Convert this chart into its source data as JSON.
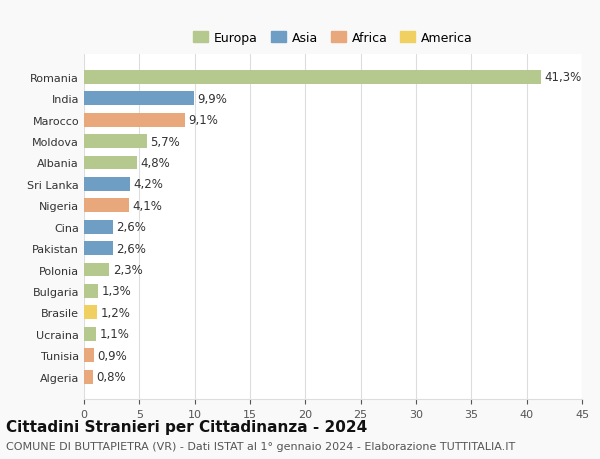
{
  "countries": [
    "Romania",
    "India",
    "Marocco",
    "Moldova",
    "Albania",
    "Sri Lanka",
    "Nigeria",
    "Cina",
    "Pakistan",
    "Polonia",
    "Bulgaria",
    "Brasile",
    "Ucraina",
    "Tunisia",
    "Algeria"
  ],
  "values": [
    41.3,
    9.9,
    9.1,
    5.7,
    4.8,
    4.2,
    4.1,
    2.6,
    2.6,
    2.3,
    1.3,
    1.2,
    1.1,
    0.9,
    0.8
  ],
  "labels": [
    "41,3%",
    "9,9%",
    "9,1%",
    "5,7%",
    "4,8%",
    "4,2%",
    "4,1%",
    "2,6%",
    "2,6%",
    "2,3%",
    "1,3%",
    "1,2%",
    "1,1%",
    "0,9%",
    "0,8%"
  ],
  "continents": [
    "Europa",
    "Asia",
    "Africa",
    "Europa",
    "Europa",
    "Asia",
    "Africa",
    "Asia",
    "Asia",
    "Europa",
    "Europa",
    "America",
    "Europa",
    "Africa",
    "Africa"
  ],
  "continent_colors": {
    "Europa": "#b5c98e",
    "Asia": "#6e9ec4",
    "Africa": "#e8a87c",
    "America": "#f0d060"
  },
  "legend_order": [
    "Europa",
    "Asia",
    "Africa",
    "America"
  ],
  "xlim": [
    0,
    45
  ],
  "xticks": [
    0,
    5,
    10,
    15,
    20,
    25,
    30,
    35,
    40,
    45
  ],
  "title": "Cittadini Stranieri per Cittadinanza - 2024",
  "subtitle": "COMUNE DI BUTTAPIETRA (VR) - Dati ISTAT al 1° gennaio 2024 - Elaborazione TUTTITALIA.IT",
  "background_color": "#f9f9f9",
  "bar_background": "#ffffff",
  "grid_color": "#dddddd",
  "title_fontsize": 11,
  "subtitle_fontsize": 8,
  "label_fontsize": 8.5,
  "tick_fontsize": 8,
  "legend_fontsize": 9
}
